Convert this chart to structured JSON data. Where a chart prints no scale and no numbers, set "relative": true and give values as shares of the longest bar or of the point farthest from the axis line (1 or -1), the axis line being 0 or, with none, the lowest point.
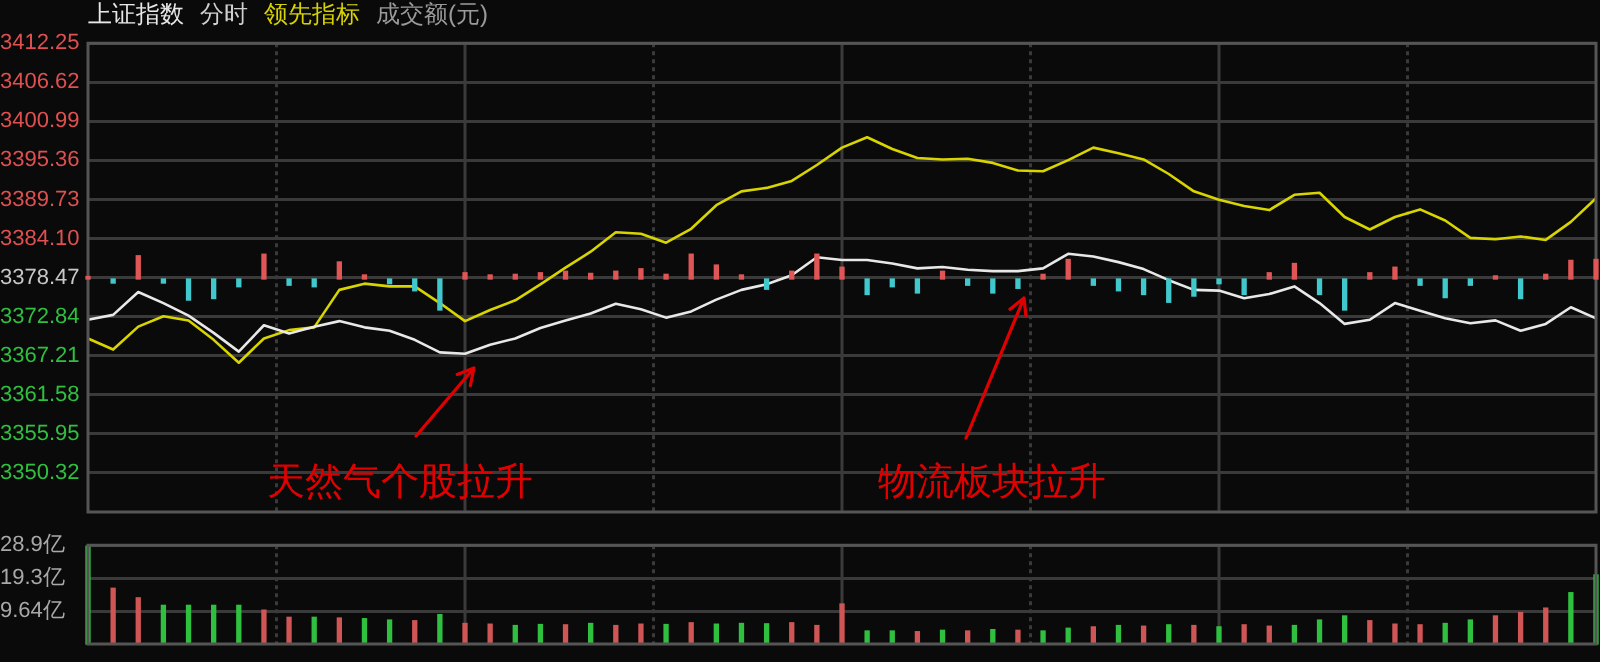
{
  "chart_data": [
    {
      "type": "line",
      "subtitle": "分时",
      "grid": true,
      "tick_labels": "y",
      "ylim": [
        3344.69,
        3412.25
      ],
      "yticks": [
        3350.32,
        3355.95,
        3361.58,
        3367.21,
        3372.84,
        3378.47,
        {
          "value": 3384.1,
          "label": "3384.10"
        },
        3389.73,
        3395.36,
        3400.99,
        3406.62,
        3412.25
      ],
      "annotations": [
        "天然气个股拉升",
        "物流板块拉升",
        "成交额(元)"
      ],
      "categories": [
        null,
        null,
        null,
        null,
        null,
        null,
        null,
        null,
        null,
        null,
        null,
        null,
        null,
        null,
        null,
        null,
        null,
        null,
        null,
        null,
        null,
        null,
        null,
        null,
        null,
        null,
        null,
        null,
        null,
        null,
        null,
        null,
        null,
        null,
        null,
        null,
        null,
        null,
        null,
        null,
        null,
        null,
        null,
        null,
        null,
        null,
        null,
        null,
        null,
        null,
        null,
        null,
        null,
        null,
        null,
        null,
        null,
        null,
        null,
        null,
        null
      ],
      "series": [
        {
          "name": "上证指数",
          "color": "#e8e8e8",
          "values": [
            3372.4,
            3373.1,
            3376.4,
            3374.8,
            3373.0,
            3370.5,
            3367.8,
            3371.6,
            3370.4,
            3371.4,
            3372.2,
            3371.3,
            3370.8,
            3369.5,
            3367.7,
            3367.5,
            3368.8,
            3369.7,
            3371.2,
            3372.3,
            3373.3,
            3374.7,
            3373.9,
            3372.7,
            3373.6,
            3375.3,
            3376.7,
            3377.5,
            3378.8,
            3381.4,
            3381.0,
            3381.0,
            3380.5,
            3379.8,
            3380.0,
            3379.6,
            3379.4,
            3379.4,
            3379.8,
            3381.9,
            3381.5,
            3380.7,
            3379.7,
            3378.1,
            3376.7,
            3376.6,
            3375.5,
            3376.1,
            3377.2,
            3374.8,
            3371.8,
            3372.4,
            3374.8,
            3373.7,
            3372.6,
            3371.9,
            3372.3,
            3370.8,
            3371.8,
            3374.2,
            3372.6
          ]
        },
        {
          "name": "领先指标",
          "color": "#d8d400",
          "values": [
            3369.7,
            3368.1,
            3371.4,
            3372.9,
            3372.3,
            3369.5,
            3366.2,
            3369.7,
            3370.9,
            3371.3,
            3376.7,
            3377.6,
            3377.2,
            3377.2,
            3374.8,
            3372.2,
            3373.8,
            3375.2,
            3377.5,
            3379.9,
            3382.2,
            3385.0,
            3384.8,
            3383.5,
            3385.5,
            3388.9,
            3390.9,
            3391.4,
            3392.4,
            3394.7,
            3397.2,
            3398.7,
            3397.0,
            3395.7,
            3395.5,
            3395.6,
            3395.0,
            3393.9,
            3393.8,
            3395.4,
            3397.2,
            3396.4,
            3395.5,
            3393.4,
            3390.9,
            3389.7,
            3388.8,
            3388.2,
            3390.4,
            3390.7,
            3387.2,
            3385.4,
            3387.2,
            3388.3,
            3386.7,
            3384.2,
            3384.0,
            3384.4,
            3383.9,
            3386.5,
            3389.9
          ]
        }
      ]
    },
    {
      "type": "bar",
      "relative": true,
      "categories": [
        null,
        null,
        null,
        null,
        null,
        null,
        null,
        null,
        null,
        null,
        null,
        null,
        null,
        null,
        null,
        null,
        null,
        null,
        null,
        null,
        null,
        null,
        null,
        null,
        null,
        null,
        null,
        null,
        null,
        null,
        null,
        null,
        null,
        null,
        null,
        null,
        null,
        null,
        null,
        null,
        null,
        null,
        null,
        null,
        null,
        null,
        null,
        null,
        null,
        null,
        null,
        null,
        null,
        null,
        null,
        null,
        null,
        null,
        null,
        null,
        null
      ],
      "values": [
        0.08,
        -0.13,
        0.75,
        -0.13,
        -0.68,
        -0.63,
        -0.25,
        0.8,
        -0.2,
        -0.25,
        0.55,
        0.13,
        -0.15,
        -0.38,
        -1,
        0.2,
        0.13,
        0.15,
        0.2,
        0.25,
        0.18,
        0.25,
        0.33,
        0.15,
        0.8,
        0.45,
        0.13,
        -0.33,
        0.25,
        0.8,
        0.38,
        -0.5,
        -0.25,
        -0.45,
        0.25,
        -0.2,
        -0.45,
        -0.3,
        0.15,
        0.63,
        -0.2,
        -0.38,
        -0.5,
        -0.75,
        -0.55,
        -0.15,
        -0.5,
        0.2,
        0.5,
        -0.5,
        -1,
        0.2,
        0.38,
        -0.2,
        -0.6,
        -0.2,
        0.1,
        -0.63,
        0.15,
        0.6,
        0.63
      ],
      "colors": [
        "#e05555",
        "#40c8cc",
        "#e05555",
        "#40c8cc",
        "#40c8cc",
        "#40c8cc",
        "#40c8cc",
        "#e05555",
        "#40c8cc",
        "#40c8cc",
        "#e05555",
        "#e05555",
        "#40c8cc",
        "#40c8cc",
        "#40c8cc",
        "#e05555",
        "#e05555",
        "#e05555",
        "#e05555",
        "#e05555",
        "#e05555",
        "#e05555",
        "#e05555",
        "#e05555",
        "#e05555",
        "#e05555",
        "#e05555",
        "#40c8cc",
        "#e05555",
        "#e05555",
        "#e05555",
        "#40c8cc",
        "#40c8cc",
        "#40c8cc",
        "#e05555",
        "#40c8cc",
        "#40c8cc",
        "#40c8cc",
        "#e05555",
        "#e05555",
        "#40c8cc",
        "#40c8cc",
        "#40c8cc",
        "#40c8cc",
        "#40c8cc",
        "#40c8cc",
        "#40c8cc",
        "#e05555",
        "#e05555",
        "#40c8cc",
        "#40c8cc",
        "#e05555",
        "#e05555",
        "#40c8cc",
        "#40c8cc",
        "#40c8cc",
        "#e05555",
        "#40c8cc",
        "#e05555",
        "#e05555",
        "#e05555"
      ]
    },
    {
      "type": "bar",
      "grid": true,
      "tick_labels": "y",
      "ylim": [
        0,
        28.9
      ],
      "yticks": [
        {
          "value": 9.64,
          "label": "9.64亿"
        },
        {
          "value": 19.3,
          "label": "19.3亿"
        },
        {
          "value": 28.9,
          "label": "28.9亿"
        }
      ],
      "categories": [
        null,
        null,
        null,
        null,
        null,
        null,
        null,
        null,
        null,
        null,
        null,
        null,
        null,
        null,
        null,
        null,
        null,
        null,
        null,
        null,
        null,
        null,
        null,
        null,
        null,
        null,
        null,
        null,
        null,
        null,
        null,
        null,
        null,
        null,
        null,
        null,
        null,
        null,
        null,
        null,
        null,
        null,
        null,
        null,
        null,
        null,
        null,
        null,
        null,
        null,
        null,
        null,
        null,
        null,
        null,
        null,
        null,
        null,
        null,
        null,
        null
      ],
      "values": [
        28.6,
        16.3,
        13.5,
        11.3,
        11.3,
        11.3,
        11.3,
        9.9,
        7.8,
        7.8,
        7.6,
        7.4,
        7.0,
        6.8,
        8.6,
        6.0,
        5.8,
        5.4,
        5.7,
        5.6,
        6.0,
        5.4,
        5.8,
        5.7,
        6.2,
        5.8,
        6.0,
        5.9,
        6.2,
        5.4,
        11.7,
        3.8,
        3.8,
        3.6,
        4.0,
        3.8,
        4.2,
        4.0,
        3.8,
        4.6,
        5.0,
        5.4,
        5.2,
        5.6,
        5.4,
        5.0,
        5.6,
        5.2,
        5.4,
        7.0,
        8.2,
        6.8,
        5.8,
        5.6,
        6.0,
        7.0,
        8.2,
        9.2,
        10.5,
        15.0,
        20.2
      ],
      "colors": [
        "#30c040",
        "#d05555",
        "#d05555",
        "#30c040",
        "#30c040",
        "#30c040",
        "#30c040",
        "#d05555",
        "#d05555",
        "#30c040",
        "#d05555",
        "#30c040",
        "#30c040",
        "#d05555",
        "#30c040",
        "#d05555",
        "#d05555",
        "#30c040",
        "#30c040",
        "#d05555",
        "#30c040",
        "#d05555",
        "#d05555",
        "#30c040",
        "#d05555",
        "#30c040",
        "#30c040",
        "#30c040",
        "#d05555",
        "#d05555",
        "#d05555",
        "#30c040",
        "#30c040",
        "#d05555",
        "#30c040",
        "#d05555",
        "#30c040",
        "#d05555",
        "#30c040",
        "#30c040",
        "#d05555",
        "#30c040",
        "#d05555",
        "#30c040",
        "#d05555",
        "#30c040",
        "#d05555",
        "#d05555",
        "#30c040",
        "#30c040",
        "#30c040",
        "#d05555",
        "#d05555",
        "#d05555",
        "#30c040",
        "#30c040",
        "#d05555",
        "#d05555",
        "#d05555",
        "#30c040",
        "#30c040"
      ]
    }
  ]
}
